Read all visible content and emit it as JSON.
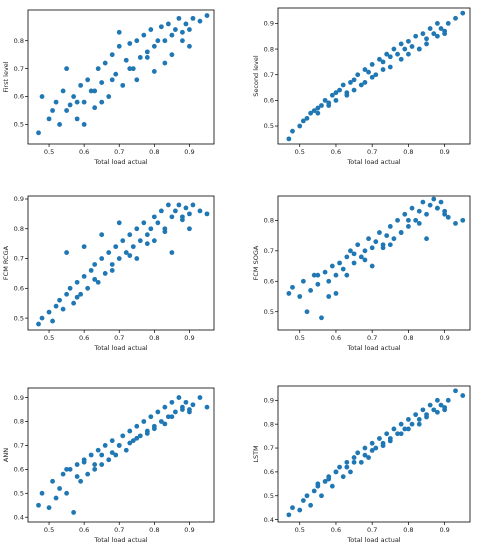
{
  "chart_data": [
    {
      "type": "scatter",
      "xlabel": "Total load actual",
      "ylabel": "First level",
      "xlim": [
        0.44,
        0.97
      ],
      "ylim": [
        0.43,
        0.91
      ],
      "xticks": [
        "0.5",
        "0.6",
        "0.7",
        "0.8",
        "0.9"
      ],
      "yticks": [
        "0.5",
        "0.6",
        "0.7",
        "0.8"
      ],
      "color": "#1f77b4",
      "grid": false,
      "series": [
        {
          "x": [
            0.47,
            0.48,
            0.5,
            0.51,
            0.52,
            0.53,
            0.54,
            0.55,
            0.56,
            0.57,
            0.58,
            0.59,
            0.6,
            0.61,
            0.62,
            0.63,
            0.64,
            0.65,
            0.66,
            0.67,
            0.68,
            0.69,
            0.7,
            0.71,
            0.72,
            0.73,
            0.74,
            0.75,
            0.76,
            0.77,
            0.78,
            0.79,
            0.8,
            0.81,
            0.82,
            0.83,
            0.84,
            0.85,
            0.86,
            0.87,
            0.88,
            0.89,
            0.9,
            0.91,
            0.93,
            0.95,
            0.55,
            0.6,
            0.65,
            0.7,
            0.75,
            0.8,
            0.85,
            0.9,
            0.58,
            0.63,
            0.68,
            0.73,
            0.78,
            0.83,
            0.88
          ],
          "y": [
            0.47,
            0.6,
            0.52,
            0.55,
            0.58,
            0.5,
            0.62,
            0.55,
            0.57,
            0.6,
            0.52,
            0.64,
            0.58,
            0.66,
            0.62,
            0.56,
            0.7,
            0.65,
            0.72,
            0.6,
            0.75,
            0.68,
            0.78,
            0.64,
            0.73,
            0.79,
            0.7,
            0.8,
            0.74,
            0.82,
            0.76,
            0.84,
            0.78,
            0.8,
            0.85,
            0.72,
            0.86,
            0.82,
            0.84,
            0.88,
            0.8,
            0.86,
            0.84,
            0.88,
            0.87,
            0.89,
            0.7,
            0.5,
            0.58,
            0.83,
            0.66,
            0.69,
            0.75,
            0.78,
            0.58,
            0.62,
            0.66,
            0.7,
            0.74,
            0.8,
            0.83
          ]
        }
      ]
    },
    {
      "type": "scatter",
      "xlabel": "Total load actual",
      "ylabel": "Second level",
      "xlim": [
        0.44,
        0.97
      ],
      "ylim": [
        0.43,
        0.96
      ],
      "xticks": [
        "0.5",
        "0.6",
        "0.7",
        "0.8",
        "0.9"
      ],
      "yticks": [
        "0.5",
        "0.6",
        "0.7",
        "0.8",
        "0.9"
      ],
      "color": "#1f77b4",
      "grid": false,
      "series": [
        {
          "x": [
            0.47,
            0.48,
            0.5,
            0.51,
            0.52,
            0.53,
            0.54,
            0.55,
            0.56,
            0.57,
            0.58,
            0.59,
            0.6,
            0.61,
            0.62,
            0.63,
            0.64,
            0.65,
            0.66,
            0.67,
            0.68,
            0.69,
            0.7,
            0.71,
            0.72,
            0.73,
            0.74,
            0.75,
            0.76,
            0.77,
            0.78,
            0.79,
            0.8,
            0.81,
            0.82,
            0.83,
            0.84,
            0.85,
            0.86,
            0.87,
            0.88,
            0.89,
            0.9,
            0.91,
            0.93,
            0.95,
            0.55,
            0.6,
            0.65,
            0.7,
            0.75,
            0.8,
            0.85,
            0.9,
            0.58,
            0.63,
            0.68,
            0.73,
            0.78,
            0.83,
            0.88
          ],
          "y": [
            0.45,
            0.48,
            0.5,
            0.52,
            0.53,
            0.55,
            0.56,
            0.57,
            0.58,
            0.6,
            0.59,
            0.62,
            0.63,
            0.64,
            0.66,
            0.62,
            0.67,
            0.68,
            0.7,
            0.66,
            0.72,
            0.71,
            0.74,
            0.7,
            0.76,
            0.75,
            0.78,
            0.77,
            0.8,
            0.78,
            0.82,
            0.8,
            0.83,
            0.81,
            0.85,
            0.8,
            0.86,
            0.84,
            0.88,
            0.86,
            0.9,
            0.88,
            0.87,
            0.9,
            0.92,
            0.94,
            0.55,
            0.6,
            0.64,
            0.69,
            0.73,
            0.78,
            0.82,
            0.86,
            0.58,
            0.63,
            0.67,
            0.72,
            0.76,
            0.8,
            0.85
          ]
        }
      ]
    },
    {
      "type": "scatter",
      "xlabel": "Total load actual",
      "ylabel": "FCM RCGA",
      "xlim": [
        0.44,
        0.97
      ],
      "ylim": [
        0.46,
        0.91
      ],
      "xticks": [
        "0.5",
        "0.6",
        "0.7",
        "0.8",
        "0.9"
      ],
      "yticks": [
        "0.5",
        "0.6",
        "0.7",
        "0.8",
        "0.9"
      ],
      "color": "#1f77b4",
      "grid": false,
      "series": [
        {
          "x": [
            0.47,
            0.48,
            0.5,
            0.51,
            0.52,
            0.53,
            0.54,
            0.55,
            0.56,
            0.57,
            0.58,
            0.59,
            0.6,
            0.61,
            0.62,
            0.63,
            0.64,
            0.65,
            0.66,
            0.67,
            0.68,
            0.69,
            0.7,
            0.71,
            0.72,
            0.73,
            0.74,
            0.75,
            0.76,
            0.77,
            0.78,
            0.79,
            0.8,
            0.81,
            0.82,
            0.83,
            0.84,
            0.85,
            0.86,
            0.87,
            0.88,
            0.89,
            0.9,
            0.91,
            0.93,
            0.95,
            0.55,
            0.6,
            0.65,
            0.7,
            0.75,
            0.8,
            0.85,
            0.9,
            0.58,
            0.63,
            0.68,
            0.73,
            0.78,
            0.83,
            0.88
          ],
          "y": [
            0.48,
            0.5,
            0.52,
            0.49,
            0.54,
            0.56,
            0.53,
            0.58,
            0.6,
            0.55,
            0.62,
            0.58,
            0.64,
            0.6,
            0.66,
            0.68,
            0.62,
            0.7,
            0.65,
            0.72,
            0.68,
            0.74,
            0.7,
            0.76,
            0.72,
            0.78,
            0.74,
            0.8,
            0.76,
            0.82,
            0.78,
            0.8,
            0.84,
            0.82,
            0.86,
            0.8,
            0.88,
            0.84,
            0.86,
            0.88,
            0.83,
            0.87,
            0.85,
            0.88,
            0.86,
            0.85,
            0.72,
            0.74,
            0.78,
            0.82,
            0.7,
            0.76,
            0.72,
            0.8,
            0.57,
            0.63,
            0.66,
            0.71,
            0.75,
            0.79,
            0.84
          ]
        }
      ]
    },
    {
      "type": "scatter",
      "xlabel": "Total load actual",
      "ylabel": "FCM SOGA",
      "xlim": [
        0.44,
        0.97
      ],
      "ylim": [
        0.44,
        0.88
      ],
      "xticks": [
        "0.5",
        "0.6",
        "0.7",
        "0.8",
        "0.9"
      ],
      "yticks": [
        "0.5",
        "0.6",
        "0.7",
        "0.8"
      ],
      "color": "#1f77b4",
      "grid": false,
      "series": [
        {
          "x": [
            0.47,
            0.48,
            0.5,
            0.51,
            0.52,
            0.53,
            0.54,
            0.55,
            0.56,
            0.57,
            0.58,
            0.59,
            0.6,
            0.61,
            0.62,
            0.63,
            0.64,
            0.65,
            0.66,
            0.67,
            0.68,
            0.69,
            0.7,
            0.71,
            0.72,
            0.73,
            0.74,
            0.75,
            0.76,
            0.77,
            0.78,
            0.79,
            0.8,
            0.81,
            0.82,
            0.83,
            0.84,
            0.85,
            0.86,
            0.87,
            0.88,
            0.89,
            0.9,
            0.91,
            0.93,
            0.95,
            0.55,
            0.6,
            0.65,
            0.7,
            0.75,
            0.8,
            0.85,
            0.9,
            0.58,
            0.63,
            0.68,
            0.73,
            0.78,
            0.83,
            0.88
          ],
          "y": [
            0.56,
            0.58,
            0.55,
            0.6,
            0.5,
            0.57,
            0.62,
            0.59,
            0.48,
            0.63,
            0.6,
            0.65,
            0.62,
            0.66,
            0.64,
            0.68,
            0.7,
            0.66,
            0.72,
            0.68,
            0.7,
            0.74,
            0.71,
            0.73,
            0.76,
            0.72,
            0.75,
            0.78,
            0.74,
            0.8,
            0.76,
            0.82,
            0.78,
            0.84,
            0.8,
            0.83,
            0.86,
            0.82,
            0.85,
            0.87,
            0.84,
            0.86,
            0.82,
            0.81,
            0.79,
            0.8,
            0.62,
            0.56,
            0.69,
            0.65,
            0.72,
            0.8,
            0.74,
            0.83,
            0.55,
            0.62,
            0.67,
            0.71,
            0.76,
            0.79,
            0.84
          ]
        }
      ]
    },
    {
      "type": "scatter",
      "xlabel": "Total load actual",
      "ylabel": "ANN",
      "xlim": [
        0.44,
        0.97
      ],
      "ylim": [
        0.38,
        0.94
      ],
      "xticks": [
        "0.5",
        "0.6",
        "0.7",
        "0.8",
        "0.9"
      ],
      "yticks": [
        "0.4",
        "0.5",
        "0.6",
        "0.7",
        "0.8",
        "0.9"
      ],
      "color": "#1f77b4",
      "grid": false,
      "series": [
        {
          "x": [
            0.47,
            0.48,
            0.5,
            0.51,
            0.52,
            0.53,
            0.54,
            0.55,
            0.56,
            0.57,
            0.58,
            0.59,
            0.6,
            0.61,
            0.62,
            0.63,
            0.64,
            0.65,
            0.66,
            0.67,
            0.68,
            0.69,
            0.7,
            0.71,
            0.72,
            0.73,
            0.74,
            0.75,
            0.76,
            0.77,
            0.78,
            0.79,
            0.8,
            0.81,
            0.82,
            0.83,
            0.84,
            0.85,
            0.86,
            0.87,
            0.88,
            0.89,
            0.9,
            0.91,
            0.93,
            0.95,
            0.55,
            0.6,
            0.65,
            0.7,
            0.75,
            0.8,
            0.85,
            0.9,
            0.58,
            0.63,
            0.68,
            0.73,
            0.78,
            0.83,
            0.88
          ],
          "y": [
            0.45,
            0.5,
            0.44,
            0.55,
            0.48,
            0.52,
            0.58,
            0.5,
            0.6,
            0.42,
            0.62,
            0.55,
            0.64,
            0.58,
            0.66,
            0.6,
            0.68,
            0.62,
            0.7,
            0.64,
            0.72,
            0.66,
            0.7,
            0.74,
            0.68,
            0.76,
            0.72,
            0.78,
            0.74,
            0.8,
            0.76,
            0.82,
            0.78,
            0.84,
            0.8,
            0.86,
            0.82,
            0.88,
            0.84,
            0.9,
            0.86,
            0.88,
            0.85,
            0.87,
            0.9,
            0.86,
            0.6,
            0.63,
            0.66,
            0.7,
            0.73,
            0.77,
            0.82,
            0.84,
            0.57,
            0.62,
            0.67,
            0.71,
            0.75,
            0.79,
            0.85
          ]
        }
      ]
    },
    {
      "type": "scatter",
      "xlabel": "Total load actual",
      "ylabel": "LSTM",
      "xlim": [
        0.44,
        0.97
      ],
      "ylim": [
        0.39,
        0.96
      ],
      "xticks": [
        "0.5",
        "0.6",
        "0.7",
        "0.8",
        "0.9"
      ],
      "yticks": [
        "0.4",
        "0.5",
        "0.6",
        "0.7",
        "0.8",
        "0.9"
      ],
      "color": "#1f77b4",
      "grid": false,
      "series": [
        {
          "x": [
            0.47,
            0.48,
            0.5,
            0.51,
            0.52,
            0.53,
            0.54,
            0.55,
            0.56,
            0.57,
            0.58,
            0.59,
            0.6,
            0.61,
            0.62,
            0.63,
            0.64,
            0.65,
            0.66,
            0.67,
            0.68,
            0.69,
            0.7,
            0.71,
            0.72,
            0.73,
            0.74,
            0.75,
            0.76,
            0.77,
            0.78,
            0.79,
            0.8,
            0.81,
            0.82,
            0.83,
            0.84,
            0.85,
            0.86,
            0.87,
            0.88,
            0.89,
            0.9,
            0.91,
            0.93,
            0.95,
            0.55,
            0.6,
            0.65,
            0.7,
            0.75,
            0.8,
            0.85,
            0.9,
            0.58,
            0.63,
            0.68,
            0.73,
            0.78,
            0.83,
            0.88
          ],
          "y": [
            0.42,
            0.45,
            0.44,
            0.48,
            0.5,
            0.46,
            0.52,
            0.54,
            0.5,
            0.56,
            0.58,
            0.54,
            0.6,
            0.62,
            0.58,
            0.64,
            0.6,
            0.66,
            0.68,
            0.64,
            0.7,
            0.66,
            0.72,
            0.7,
            0.74,
            0.72,
            0.76,
            0.74,
            0.78,
            0.76,
            0.8,
            0.78,
            0.82,
            0.8,
            0.84,
            0.82,
            0.86,
            0.84,
            0.88,
            0.86,
            0.9,
            0.88,
            0.86,
            0.9,
            0.94,
            0.92,
            0.55,
            0.6,
            0.64,
            0.69,
            0.73,
            0.78,
            0.83,
            0.87,
            0.57,
            0.62,
            0.67,
            0.71,
            0.76,
            0.8,
            0.85
          ]
        }
      ]
    }
  ]
}
